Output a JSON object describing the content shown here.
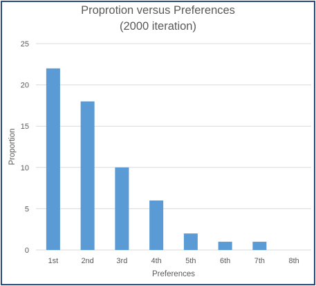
{
  "chart_data": {
    "type": "bar",
    "title_line1": "Proprotion versus Preferences",
    "title_line2": "(2000 iteration)",
    "xlabel": "Preferences",
    "ylabel": "Proportion",
    "categories": [
      "1st",
      "2nd",
      "3rd",
      "4th",
      "5th",
      "6th",
      "7th",
      "8th"
    ],
    "values": [
      22,
      18,
      10,
      6,
      2,
      1,
      1,
      0
    ],
    "ylim": [
      0,
      25
    ],
    "yticks": [
      0,
      5,
      10,
      15,
      20,
      25
    ],
    "grid": true,
    "legend": "none",
    "colors": {
      "bar": "#5b9bd5",
      "grid": "#d9d9d9",
      "text": "#595959",
      "border": "#2a4a7f"
    }
  }
}
